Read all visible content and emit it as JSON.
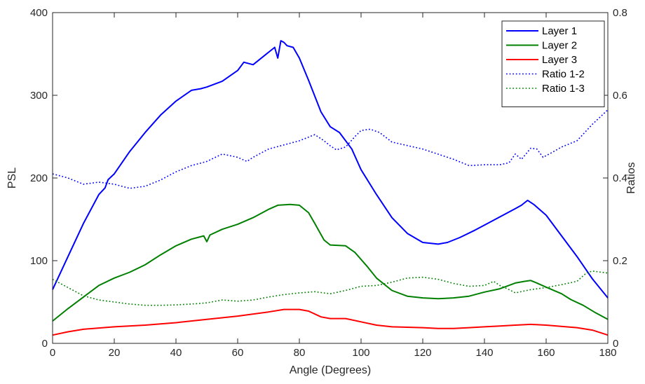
{
  "chart_data": {
    "type": "line",
    "title": "",
    "xlabel": "Angle (Degrees)",
    "ylabel_left": "PSL",
    "ylabel_right": "Ratios",
    "xlim": [
      0,
      180
    ],
    "ylim_left": [
      0,
      400
    ],
    "ylim_right": [
      0,
      0.8
    ],
    "x_ticks": [
      "0",
      "20",
      "40",
      "60",
      "80",
      "100",
      "120",
      "140",
      "160",
      "180"
    ],
    "y_left_ticks": [
      "0",
      "100",
      "200",
      "300",
      "400"
    ],
    "y_right_ticks": [
      "0",
      "0.2",
      "0.4",
      "0.6",
      "0.8"
    ],
    "grid": false,
    "legend_position": "top-right",
    "series": [
      {
        "name": "Layer 1",
        "axis": "left",
        "color": "#0000ff",
        "style": "solid",
        "points": [
          [
            0,
            65
          ],
          [
            5,
            105
          ],
          [
            10,
            145
          ],
          [
            15,
            180
          ],
          [
            17,
            188
          ],
          [
            18,
            198
          ],
          [
            20,
            205
          ],
          [
            25,
            232
          ],
          [
            30,
            255
          ],
          [
            35,
            276
          ],
          [
            40,
            293
          ],
          [
            45,
            306
          ],
          [
            48,
            308
          ],
          [
            50,
            310
          ],
          [
            55,
            317
          ],
          [
            60,
            330
          ],
          [
            62,
            340
          ],
          [
            65,
            337
          ],
          [
            70,
            352
          ],
          [
            72,
            358
          ],
          [
            73,
            345
          ],
          [
            74,
            366
          ],
          [
            75,
            364
          ],
          [
            76,
            360
          ],
          [
            78,
            358
          ],
          [
            80,
            345
          ],
          [
            83,
            318
          ],
          [
            87,
            280
          ],
          [
            90,
            262
          ],
          [
            93,
            255
          ],
          [
            97,
            235
          ],
          [
            100,
            210
          ],
          [
            105,
            180
          ],
          [
            110,
            152
          ],
          [
            115,
            133
          ],
          [
            120,
            122
          ],
          [
            125,
            120
          ],
          [
            128,
            122
          ],
          [
            132,
            128
          ],
          [
            137,
            137
          ],
          [
            140,
            143
          ],
          [
            145,
            153
          ],
          [
            150,
            163
          ],
          [
            152,
            167
          ],
          [
            154,
            173
          ],
          [
            156,
            168
          ],
          [
            160,
            155
          ],
          [
            165,
            130
          ],
          [
            170,
            105
          ],
          [
            175,
            78
          ],
          [
            180,
            55
          ]
        ]
      },
      {
        "name": "Layer 2",
        "axis": "left",
        "color": "#008000",
        "style": "solid",
        "points": [
          [
            0,
            27
          ],
          [
            5,
            42
          ],
          [
            10,
            56
          ],
          [
            15,
            70
          ],
          [
            20,
            79
          ],
          [
            25,
            86
          ],
          [
            30,
            95
          ],
          [
            35,
            107
          ],
          [
            40,
            118
          ],
          [
            45,
            126
          ],
          [
            49,
            130
          ],
          [
            50,
            123
          ],
          [
            51,
            131
          ],
          [
            55,
            138
          ],
          [
            60,
            144
          ],
          [
            65,
            152
          ],
          [
            70,
            162
          ],
          [
            73,
            167
          ],
          [
            77,
            168
          ],
          [
            80,
            167
          ],
          [
            83,
            158
          ],
          [
            85,
            145
          ],
          [
            88,
            125
          ],
          [
            90,
            119
          ],
          [
            95,
            118
          ],
          [
            98,
            110
          ],
          [
            102,
            93
          ],
          [
            105,
            79
          ],
          [
            110,
            64
          ],
          [
            115,
            57
          ],
          [
            120,
            55
          ],
          [
            125,
            54
          ],
          [
            130,
            55
          ],
          [
            135,
            57
          ],
          [
            140,
            62
          ],
          [
            145,
            66
          ],
          [
            150,
            73
          ],
          [
            153,
            75
          ],
          [
            155,
            76
          ],
          [
            157,
            73
          ],
          [
            160,
            68
          ],
          [
            165,
            60
          ],
          [
            168,
            53
          ],
          [
            172,
            46
          ],
          [
            176,
            37
          ],
          [
            180,
            29
          ]
        ]
      },
      {
        "name": "Layer 3",
        "axis": "left",
        "color": "#ff0000",
        "style": "solid",
        "points": [
          [
            0,
            10
          ],
          [
            5,
            14
          ],
          [
            10,
            17
          ],
          [
            20,
            20
          ],
          [
            30,
            22
          ],
          [
            40,
            25
          ],
          [
            50,
            29
          ],
          [
            60,
            33
          ],
          [
            70,
            38
          ],
          [
            75,
            41
          ],
          [
            80,
            41
          ],
          [
            83,
            39
          ],
          [
            87,
            32
          ],
          [
            90,
            30
          ],
          [
            95,
            30
          ],
          [
            100,
            26
          ],
          [
            105,
            22
          ],
          [
            110,
            20
          ],
          [
            120,
            19
          ],
          [
            125,
            18
          ],
          [
            130,
            18
          ],
          [
            135,
            19
          ],
          [
            140,
            20
          ],
          [
            145,
            21
          ],
          [
            150,
            22
          ],
          [
            155,
            23
          ],
          [
            160,
            22
          ],
          [
            170,
            19
          ],
          [
            175,
            16
          ],
          [
            180,
            10
          ]
        ]
      },
      {
        "name": "Ratio 1-2",
        "axis": "right",
        "color": "#0000ff",
        "style": "dotted",
        "points": [
          [
            0,
            0.41
          ],
          [
            5,
            0.4
          ],
          [
            10,
            0.385
          ],
          [
            15,
            0.39
          ],
          [
            20,
            0.385
          ],
          [
            25,
            0.375
          ],
          [
            30,
            0.38
          ],
          [
            35,
            0.395
          ],
          [
            40,
            0.415
          ],
          [
            45,
            0.43
          ],
          [
            50,
            0.44
          ],
          [
            55,
            0.458
          ],
          [
            60,
            0.45
          ],
          [
            63,
            0.44
          ],
          [
            65,
            0.45
          ],
          [
            70,
            0.47
          ],
          [
            75,
            0.48
          ],
          [
            80,
            0.49
          ],
          [
            85,
            0.505
          ],
          [
            88,
            0.49
          ],
          [
            90,
            0.478
          ],
          [
            92,
            0.468
          ],
          [
            95,
            0.475
          ],
          [
            98,
            0.5
          ],
          [
            100,
            0.515
          ],
          [
            103,
            0.518
          ],
          [
            106,
            0.51
          ],
          [
            110,
            0.487
          ],
          [
            120,
            0.47
          ],
          [
            130,
            0.445
          ],
          [
            135,
            0.43
          ],
          [
            140,
            0.432
          ],
          [
            145,
            0.432
          ],
          [
            148,
            0.437
          ],
          [
            150,
            0.458
          ],
          [
            152,
            0.445
          ],
          [
            155,
            0.472
          ],
          [
            157,
            0.47
          ],
          [
            159,
            0.45
          ],
          [
            162,
            0.462
          ],
          [
            165,
            0.475
          ],
          [
            170,
            0.49
          ],
          [
            175,
            0.53
          ],
          [
            180,
            0.565
          ]
        ]
      },
      {
        "name": "Ratio 1-3",
        "axis": "right",
        "color": "#008000",
        "style": "dotted",
        "points": [
          [
            0,
            0.155
          ],
          [
            5,
            0.135
          ],
          [
            10,
            0.115
          ],
          [
            15,
            0.105
          ],
          [
            20,
            0.1
          ],
          [
            25,
            0.095
          ],
          [
            30,
            0.092
          ],
          [
            35,
            0.092
          ],
          [
            40,
            0.093
          ],
          [
            45,
            0.095
          ],
          [
            50,
            0.098
          ],
          [
            55,
            0.105
          ],
          [
            60,
            0.102
          ],
          [
            65,
            0.105
          ],
          [
            70,
            0.112
          ],
          [
            75,
            0.118
          ],
          [
            80,
            0.122
          ],
          [
            85,
            0.125
          ],
          [
            90,
            0.12
          ],
          [
            95,
            0.128
          ],
          [
            100,
            0.138
          ],
          [
            105,
            0.14
          ],
          [
            110,
            0.148
          ],
          [
            115,
            0.158
          ],
          [
            120,
            0.16
          ],
          [
            125,
            0.155
          ],
          [
            130,
            0.145
          ],
          [
            135,
            0.138
          ],
          [
            140,
            0.14
          ],
          [
            143,
            0.15
          ],
          [
            145,
            0.14
          ],
          [
            148,
            0.13
          ],
          [
            150,
            0.122
          ],
          [
            155,
            0.13
          ],
          [
            160,
            0.135
          ],
          [
            165,
            0.142
          ],
          [
            170,
            0.15
          ],
          [
            173,
            0.17
          ],
          [
            175,
            0.175
          ],
          [
            180,
            0.17
          ]
        ]
      }
    ]
  }
}
